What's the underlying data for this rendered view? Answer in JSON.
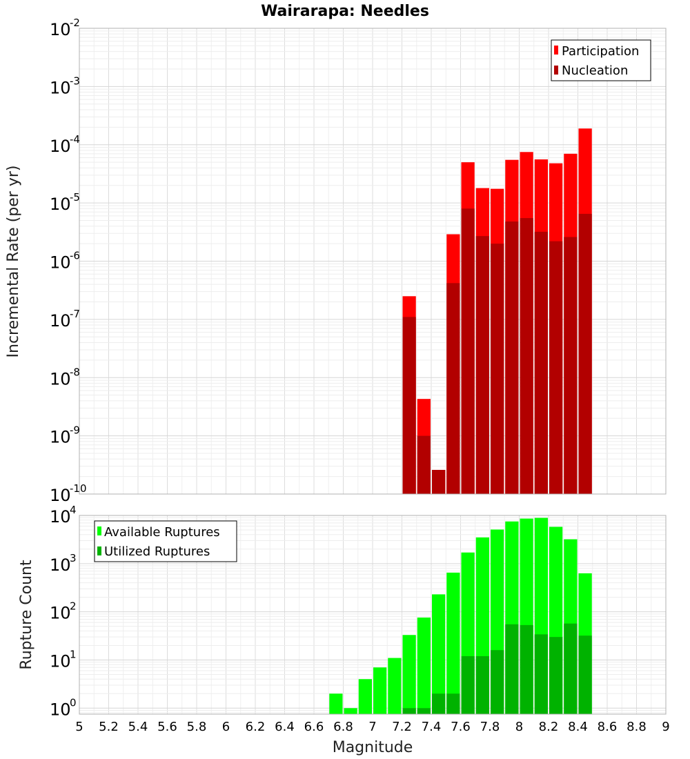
{
  "figure": {
    "title": "Wairarapa: Needles"
  },
  "chart_data": [
    {
      "type": "bar",
      "panel": "top",
      "scale": "log",
      "ylabel": "Incremental Rate (per yr)",
      "xlabel": "",
      "xlim": [
        5,
        9
      ],
      "ylim": [
        1e-10,
        0.01
      ],
      "y_tick_exponents": [
        -10,
        -9,
        -8,
        -7,
        -6,
        -5,
        -4,
        -3,
        -2
      ],
      "grid": true,
      "legend_placement": "top-right",
      "bin_width": 0.1,
      "x": [
        7.25,
        7.35,
        7.45,
        7.55,
        7.65,
        7.75,
        7.85,
        7.95,
        8.05,
        8.15,
        8.25,
        8.35,
        8.45
      ],
      "series": [
        {
          "name": "Participation",
          "color": "#ff0000",
          "values": [
            2.5e-07,
            4.3e-09,
            2.6e-10,
            2.9e-06,
            5e-05,
            1.8e-05,
            1.75e-05,
            5.5e-05,
            7.5e-05,
            5.6e-05,
            4.8e-05,
            7e-05,
            0.00019
          ]
        },
        {
          "name": "Nucleation",
          "color": "#b20000",
          "values": [
            1.1e-07,
            1e-09,
            2.6e-10,
            4.2e-07,
            8e-06,
            2.7e-06,
            2e-06,
            4.8e-06,
            5.5e-06,
            3.2e-06,
            2.2e-06,
            2.6e-06,
            6.5e-06
          ]
        }
      ]
    },
    {
      "type": "bar",
      "panel": "bottom",
      "scale": "log",
      "ylabel": "Rupture Count",
      "xlabel": "Magnitude",
      "xlim": [
        5,
        9
      ],
      "ylim": [
        0.75,
        10000
      ],
      "y_tick_exponents": [
        0,
        1,
        2,
        3,
        4
      ],
      "x_ticks": [
        "5",
        "5.2",
        "5.4",
        "5.6",
        "5.8",
        "6",
        "6.2",
        "6.4",
        "6.6",
        "6.8",
        "7",
        "7.2",
        "7.4",
        "7.6",
        "7.8",
        "8",
        "8.2",
        "8.4",
        "8.6",
        "8.8",
        "9"
      ],
      "grid": true,
      "legend_placement": "top-left",
      "bin_width": 0.1,
      "x": [
        6.75,
        6.85,
        6.95,
        7.05,
        7.15,
        7.25,
        7.35,
        7.45,
        7.55,
        7.65,
        7.75,
        7.85,
        7.95,
        8.05,
        8.15,
        8.25,
        8.35,
        8.45
      ],
      "series": [
        {
          "name": "Available Ruptures",
          "color": "#00ff00",
          "values": [
            2,
            1,
            4,
            7,
            11,
            33,
            76,
            230,
            650,
            1700,
            3500,
            5100,
            7500,
            8600,
            8900,
            5800,
            3200,
            630
          ]
        },
        {
          "name": "Utilized Ruptures",
          "color": "#00b200",
          "values": [
            0,
            0,
            0,
            0,
            0,
            1,
            1,
            2,
            2,
            12,
            12,
            16,
            55,
            53,
            34,
            30,
            57,
            32
          ]
        }
      ]
    }
  ]
}
